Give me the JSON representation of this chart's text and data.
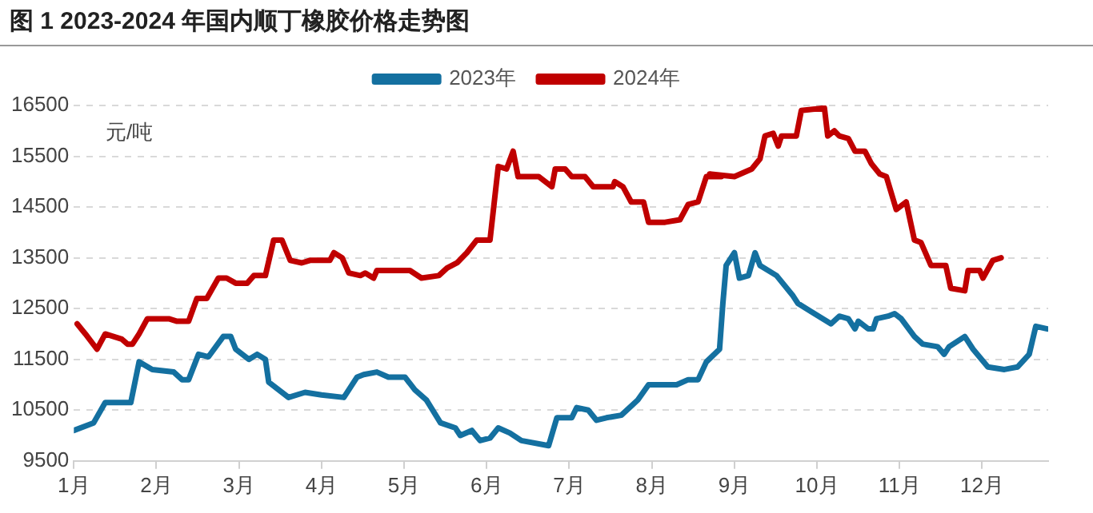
{
  "chart_data": {
    "type": "line",
    "title": "图 1 2023-2024 年国内顺丁橡胶价格走势图",
    "ylabel": "元/吨",
    "xlim": [
      1,
      12.8
    ],
    "xticks": [
      {
        "value": 1,
        "label": "1月"
      },
      {
        "value": 2,
        "label": "2月"
      },
      {
        "value": 3,
        "label": "3月"
      },
      {
        "value": 4,
        "label": "4月"
      },
      {
        "value": 5,
        "label": "5月"
      },
      {
        "value": 6,
        "label": "6月"
      },
      {
        "value": 7,
        "label": "7月"
      },
      {
        "value": 8,
        "label": "8月"
      },
      {
        "value": 9,
        "label": "9月"
      },
      {
        "value": 10,
        "label": "10月"
      },
      {
        "value": 11,
        "label": "11月"
      },
      {
        "value": 12,
        "label": "12月"
      }
    ],
    "ylim": [
      9500,
      16500
    ],
    "yticks": [
      9500,
      10500,
      11500,
      12500,
      13500,
      14500,
      15500,
      16500
    ],
    "grid": "y",
    "legend": "top",
    "marker": "none",
    "line_style": "solid",
    "series": [
      {
        "name": "2023年",
        "color": "#1470a0",
        "x": [
          1.0,
          1.24,
          1.38,
          1.69,
          1.79,
          1.95,
          2.21,
          2.31,
          2.39,
          2.51,
          2.63,
          2.81,
          2.9,
          2.96,
          3.12,
          3.22,
          3.32,
          3.36,
          3.6,
          3.8,
          4.0,
          4.27,
          4.43,
          4.51,
          4.67,
          4.81,
          5.01,
          5.13,
          5.27,
          5.44,
          5.62,
          5.68,
          5.82,
          5.92,
          6.04,
          6.14,
          6.28,
          6.42,
          6.75,
          6.85,
          7.03,
          7.09,
          7.23,
          7.33,
          7.45,
          7.63,
          7.83,
          7.96,
          8.3,
          8.44,
          8.56,
          8.66,
          8.82,
          8.86,
          8.9,
          9.0,
          9.06,
          9.17,
          9.25,
          9.31,
          9.51,
          9.71,
          9.77,
          10.17,
          10.27,
          10.38,
          10.46,
          10.5,
          10.62,
          10.68,
          10.72,
          10.86,
          10.94,
          11.02,
          11.18,
          11.28,
          11.46,
          11.54,
          11.6,
          11.79,
          11.89,
          12.07,
          12.27,
          12.43,
          12.57,
          12.65,
          12.79
        ],
        "values": [
          10100,
          10250,
          10650,
          10650,
          11450,
          11300,
          11250,
          11100,
          11100,
          11600,
          11550,
          11950,
          11950,
          11700,
          11500,
          11600,
          11500,
          11050,
          10750,
          10850,
          10800,
          10750,
          11150,
          11200,
          11250,
          11150,
          11150,
          10900,
          10700,
          10250,
          10150,
          10000,
          10100,
          9900,
          9950,
          10150,
          10050,
          9900,
          9800,
          10350,
          10350,
          10550,
          10500,
          10300,
          10350,
          10400,
          10700,
          11000,
          11000,
          11100,
          11100,
          11450,
          11700,
          12600,
          13350,
          13600,
          13100,
          13150,
          13600,
          13350,
          13150,
          12750,
          12600,
          12200,
          12350,
          12300,
          12100,
          12250,
          12100,
          12100,
          12300,
          12350,
          12400,
          12300,
          11950,
          11800,
          11750,
          11600,
          11750,
          11950,
          11700,
          11350,
          11300,
          11350,
          11600,
          12150,
          12100
        ]
      },
      {
        "name": "2024年",
        "color": "#c00000",
        "x": [
          1.04,
          1.14,
          1.28,
          1.38,
          1.58,
          1.65,
          1.71,
          1.79,
          1.89,
          2.15,
          2.25,
          2.39,
          2.49,
          2.61,
          2.75,
          2.85,
          2.96,
          3.1,
          3.18,
          3.32,
          3.42,
          3.52,
          3.62,
          3.76,
          3.86,
          4.1,
          4.15,
          4.25,
          4.33,
          4.47,
          4.53,
          4.63,
          4.67,
          4.73,
          5.07,
          5.21,
          5.42,
          5.52,
          5.64,
          5.76,
          5.88,
          6.04,
          6.14,
          6.24,
          6.32,
          6.38,
          6.63,
          6.79,
          6.83,
          6.95,
          7.03,
          7.19,
          7.29,
          7.53,
          7.55,
          7.65,
          7.75,
          7.9,
          7.96,
          8.16,
          8.34,
          8.44,
          8.56,
          8.66,
          8.84,
          8.7,
          9.0,
          9.21,
          9.31,
          9.37,
          9.47,
          9.53,
          9.57,
          9.75,
          9.81,
          10.09,
          10.13,
          10.21,
          10.27,
          10.38,
          10.46,
          10.58,
          10.66,
          10.76,
          10.84,
          10.96,
          11.08,
          11.18,
          11.26,
          11.38,
          11.56,
          11.62,
          11.79,
          11.83,
          11.97,
          12.01,
          12.13,
          12.23
        ],
        "values": [
          12200,
          12000,
          11700,
          12000,
          11900,
          11800,
          11800,
          12000,
          12300,
          12300,
          12250,
          12250,
          12700,
          12700,
          13100,
          13100,
          13000,
          13000,
          13150,
          13150,
          13850,
          13850,
          13450,
          13400,
          13450,
          13450,
          13600,
          13500,
          13200,
          13150,
          13200,
          13100,
          13250,
          13250,
          13250,
          13100,
          13150,
          13300,
          13400,
          13600,
          13850,
          13850,
          15300,
          15250,
          15600,
          15100,
          15100,
          14900,
          15250,
          15250,
          15100,
          15100,
          14900,
          14900,
          15000,
          14900,
          14600,
          14600,
          14200,
          14200,
          14250,
          14550,
          14600,
          15100,
          15100,
          15150,
          15100,
          15250,
          15450,
          15900,
          15950,
          15700,
          15900,
          15900,
          16400,
          16450,
          15900,
          16000,
          15900,
          15850,
          15600,
          15600,
          15350,
          15150,
          15100,
          14450,
          14600,
          13850,
          13800,
          13350,
          13350,
          12900,
          12850,
          13250,
          13250,
          13100,
          13450,
          13500
        ]
      }
    ]
  }
}
